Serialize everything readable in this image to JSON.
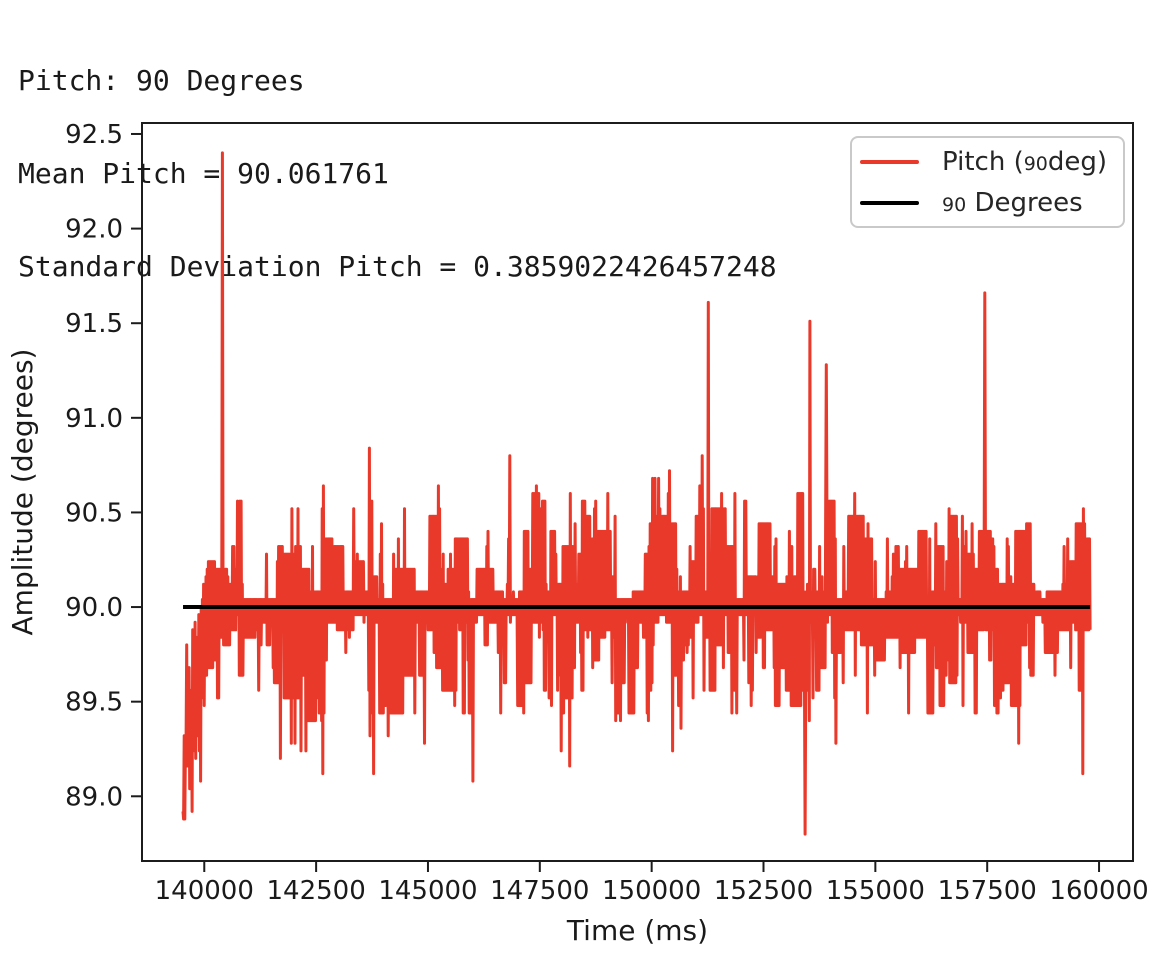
{
  "header": {
    "lines": [
      "Pitch: 90 Degrees",
      "Mean Pitch = 90.061761",
      "Standard Deviation Pitch = 0.3859022426457248"
    ]
  },
  "chart_data": {
    "type": "line",
    "title": "",
    "xlabel": "Time (ms)",
    "ylabel": "Amplitude (degrees)",
    "xlim": [
      138608,
      160759
    ],
    "ylim": [
      88.658,
      92.558
    ],
    "grid": false,
    "frame_color": "#1c1c1c",
    "text_color": "#1a1a1a",
    "xticks": {
      "values": [
        140000,
        142500,
        145000,
        147500,
        150000,
        152500,
        155000,
        157500,
        160000
      ],
      "labels": [
        "140000",
        "142500",
        "145000",
        "147500",
        "150000",
        "152500",
        "155000",
        "157500",
        "160000"
      ]
    },
    "yticks": {
      "values": [
        92.5,
        92.0,
        91.5,
        91.0,
        90.5,
        90.0,
        89.5,
        89.0
      ],
      "labels": [
        "92.5",
        "92.0",
        "91.5",
        "91.0",
        "90.5",
        "90.0",
        "89.5",
        "89.0"
      ]
    },
    "legend": {
      "position": "upper-right",
      "entries": [
        {
          "color": "#e8392b",
          "label_full": "Pitch (90deg)",
          "label_pre": "Pitch (",
          "label_small": "90",
          "label_post": "deg)"
        },
        {
          "color": "#000000",
          "label_full": "90 Degrees",
          "label_pre": "",
          "label_small": "90",
          "label_post": " Degrees"
        }
      ]
    },
    "series": [
      {
        "name": "Pitch (90deg)",
        "kind": "noisy_signal",
        "color": "#e8392b",
        "line_width": 3,
        "t_start": 139525,
        "t_end": 159800,
        "n": 1500,
        "seed": 42,
        "stats": {
          "mean": 90.061761,
          "std": 0.3859022426457248
        },
        "observed_min": 88.8,
        "observed_max": 92.4,
        "quantize": 0.04,
        "up_level": {
          "base": 90.05,
          "amp": 0.55,
          "pow": 1.8,
          "resample_p": 0.22
        },
        "down_level": {
          "base": 89.95,
          "amp": 0.55,
          "pow": 1.8,
          "resample_p": 0.25
        },
        "poke": {
          "p": 0.1,
          "amp": 0.45,
          "pow": 1.5
        },
        "intro": {
          "t_end": 140100,
          "min": 88.86
        },
        "spikes": [
          [
            140400,
            92.4
          ],
          [
            151260,
            91.61
          ],
          [
            153430,
            88.8
          ],
          [
            153540,
            91.51
          ],
          [
            153900,
            91.28
          ],
          [
            157450,
            91.66
          ]
        ]
      },
      {
        "name": "90 Degrees",
        "kind": "hline",
        "color": "#000000",
        "line_width": 4,
        "value": 90.0,
        "t_start": 139525,
        "t_end": 159800
      }
    ]
  }
}
